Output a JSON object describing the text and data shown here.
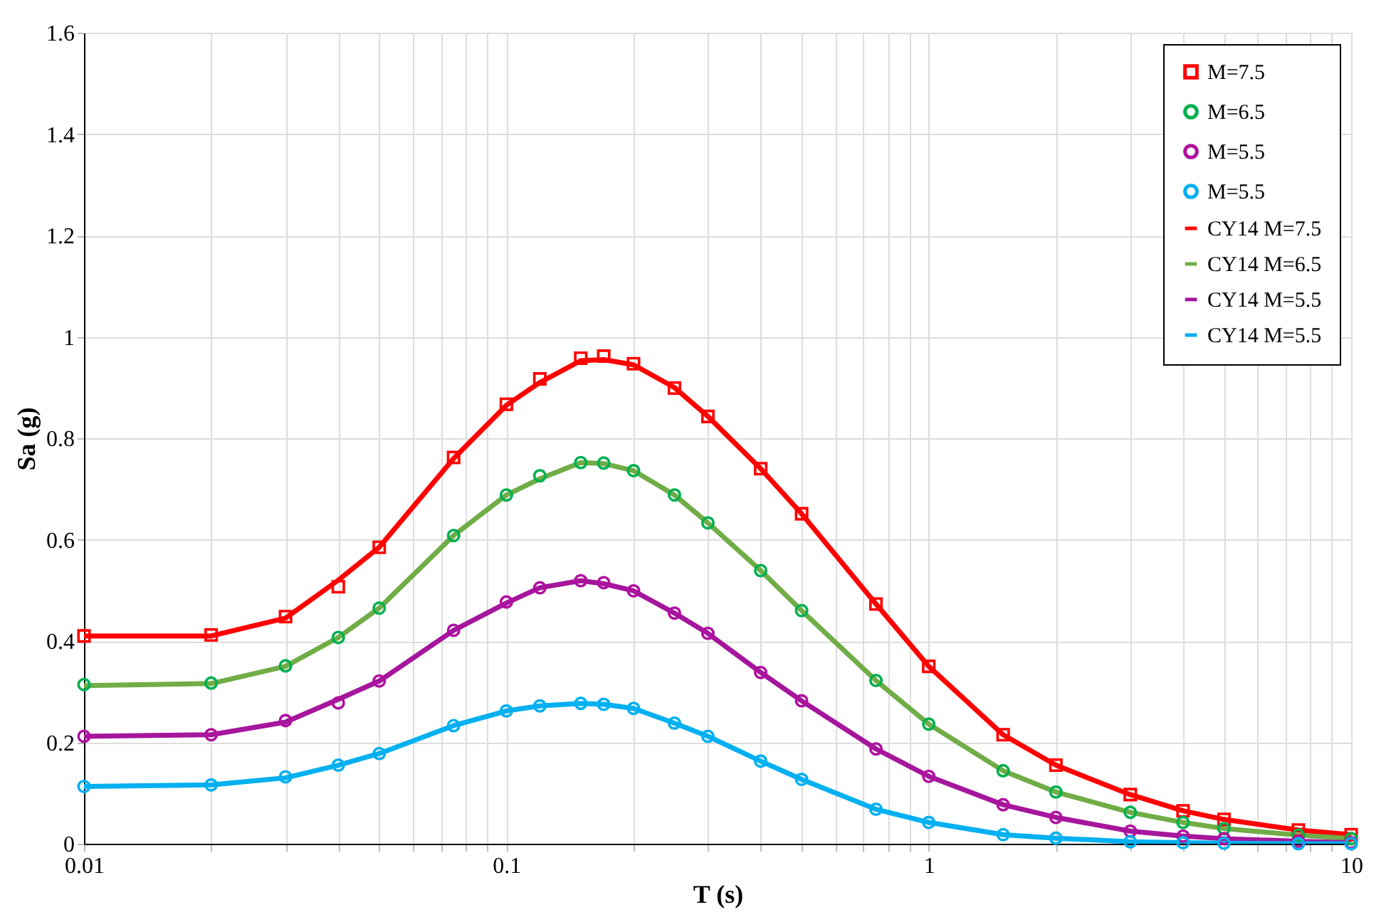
{
  "chart_data": {
    "type": "line",
    "xlabel": "T (s)",
    "ylabel": "Sa (g)",
    "log": "x",
    "grid": true,
    "legend": "top right",
    "x": [
      0.01,
      0.02,
      0.03,
      0.04,
      0.05,
      0.075,
      0.1,
      0.12,
      0.15,
      0.17,
      0.2,
      0.25,
      0.3,
      0.4,
      0.5,
      0.75,
      1,
      1.5,
      2,
      3,
      4,
      5,
      7.5,
      10
    ],
    "xlim": [
      0.01,
      10
    ],
    "xticks": [
      0.01,
      {
        "value": 0.02,
        "label": null
      },
      {
        "value": 0.03,
        "label": null
      },
      {
        "value": 0.04,
        "label": null
      },
      {
        "value": 0.05,
        "label": null
      },
      {
        "value": 0.06,
        "label": null
      },
      {
        "value": 0.07,
        "label": null
      },
      {
        "value": 0.08,
        "label": null
      },
      {
        "value": 0.09,
        "label": null
      },
      0.1,
      {
        "value": 0.2,
        "label": null
      },
      {
        "value": 0.3,
        "label": null
      },
      {
        "value": 0.4,
        "label": null
      },
      {
        "value": 0.5,
        "label": null
      },
      {
        "value": 0.6,
        "label": null
      },
      {
        "value": 0.7,
        "label": null
      },
      {
        "value": 0.8,
        "label": null
      },
      {
        "value": 0.9,
        "label": null
      },
      1,
      {
        "value": 2,
        "label": null
      },
      {
        "value": 3,
        "label": null
      },
      {
        "value": 4,
        "label": null
      },
      {
        "value": 5,
        "label": null
      },
      {
        "value": 6,
        "label": null
      },
      {
        "value": 7,
        "label": null
      },
      {
        "value": 8,
        "label": null
      },
      {
        "value": 9,
        "label": null
      },
      10
    ],
    "ylim": [
      0,
      1.6
    ],
    "yticks": [
      0,
      0.2,
      0.4,
      0.6,
      0.8,
      1,
      1.2,
      1.4,
      1.6
    ],
    "series": [
      {
        "name": "M=7.5",
        "type": "scatter",
        "marker": "square",
        "color": "#ff0000",
        "values": [
          0.41,
          0.412,
          0.448,
          0.507,
          0.585,
          0.762,
          0.867,
          0.917,
          0.958,
          0.962,
          0.947,
          0.899,
          0.843,
          0.74,
          0.651,
          0.473,
          0.35,
          0.215,
          0.155,
          0.097,
          0.065,
          0.048,
          0.027,
          0.018
        ]
      },
      {
        "name": "M=6.5",
        "type": "scatter",
        "marker": "circle",
        "color": "#00b050",
        "values": [
          0.314,
          0.317,
          0.351,
          0.407,
          0.465,
          0.608,
          0.688,
          0.726,
          0.752,
          0.751,
          0.736,
          0.688,
          0.633,
          0.539,
          0.46,
          0.322,
          0.236,
          0.144,
          0.102,
          0.062,
          0.042,
          0.03,
          0.017,
          0.01
        ]
      },
      {
        "name": "M=5.5",
        "type": "scatter",
        "marker": "circle",
        "color": "#b0109e",
        "values": [
          0.212,
          0.215,
          0.243,
          0.278,
          0.321,
          0.421,
          0.477,
          0.505,
          0.519,
          0.515,
          0.499,
          0.455,
          0.415,
          0.338,
          0.282,
          0.187,
          0.133,
          0.077,
          0.052,
          0.025,
          0.015,
          0.01,
          0.005,
          0.002
        ]
      },
      {
        "name": "M=5.5",
        "type": "scatter",
        "marker": "circle",
        "color": "#00b0f0",
        "values": [
          0.113,
          0.116,
          0.132,
          0.155,
          0.178,
          0.233,
          0.262,
          0.272,
          0.277,
          0.275,
          0.267,
          0.238,
          0.212,
          0.163,
          0.127,
          0.068,
          0.042,
          0.018,
          0.011,
          0.004,
          0.002,
          0.001,
          0.0,
          0.0
        ]
      },
      {
        "name": "CY14 M=7.5",
        "marker": "none",
        "color": "#ff0000",
        "values": [
          0.41,
          0.41,
          0.445,
          0.52,
          0.585,
          0.76,
          0.865,
          0.91,
          0.953,
          0.955,
          0.945,
          0.9,
          0.843,
          0.74,
          0.651,
          0.473,
          0.35,
          0.215,
          0.155,
          0.097,
          0.065,
          0.048,
          0.027,
          0.018
        ]
      },
      {
        "name": "CY14 M=6.5",
        "marker": "none",
        "color": "#70ad47",
        "values": [
          0.312,
          0.316,
          0.35,
          0.407,
          0.465,
          0.608,
          0.688,
          0.72,
          0.752,
          0.75,
          0.736,
          0.688,
          0.633,
          0.539,
          0.46,
          0.322,
          0.236,
          0.144,
          0.102,
          0.062,
          0.042,
          0.03,
          0.017,
          0.01
        ]
      },
      {
        "name": "CY14 M=5.5",
        "marker": "none",
        "color": "#a5169c",
        "values": [
          0.212,
          0.215,
          0.24,
          0.285,
          0.321,
          0.421,
          0.475,
          0.505,
          0.519,
          0.513,
          0.499,
          0.455,
          0.415,
          0.338,
          0.282,
          0.187,
          0.133,
          0.077,
          0.052,
          0.025,
          0.015,
          0.01,
          0.005,
          0.002
        ]
      },
      {
        "name": "CY14 M=5.5",
        "marker": "none",
        "color": "#00b0f0",
        "values": [
          0.113,
          0.116,
          0.13,
          0.155,
          0.178,
          0.233,
          0.262,
          0.272,
          0.277,
          0.275,
          0.267,
          0.238,
          0.212,
          0.163,
          0.127,
          0.068,
          0.042,
          0.018,
          0.011,
          0.004,
          0.002,
          0.001,
          0.0,
          0.0
        ]
      }
    ]
  }
}
